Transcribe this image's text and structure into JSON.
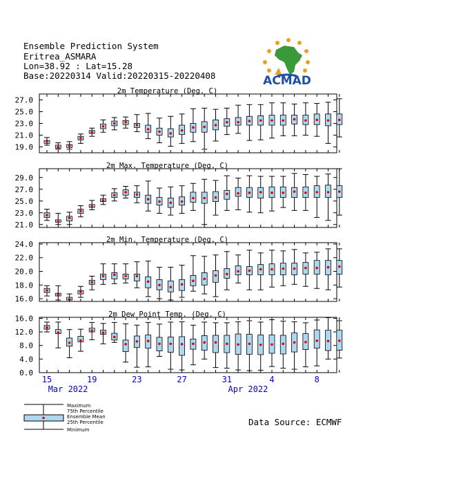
{
  "header": {
    "system": "Ensemble Prediction System",
    "station": "Eritrea_ASMARA",
    "coords": "Lon=38.92 : Lat=15.28",
    "base": "Base:20220314 Valid:20220315-20220408"
  },
  "logo": {
    "text": "ACMAD",
    "color": "#1f4fa3"
  },
  "data_source": "Data Source: ECMWF",
  "legend": {
    "maximum": "Maximum",
    "p75": "75th Percentile",
    "mean": "Ensemble Mean",
    "p25": "25th Percentile",
    "minimum": "Minimum"
  },
  "colors": {
    "box": "#add8f0",
    "mean": "#e00000",
    "axis_text": "#0000c8"
  },
  "x_axis": {
    "tick_labels": [
      "15",
      "19",
      "23",
      "27",
      "31",
      "4",
      "8"
    ],
    "months": [
      {
        "label": "Mar 2022",
        "day_index": 2
      },
      {
        "label": "Apr 2022",
        "day_index": 18
      }
    ]
  },
  "chart_data": [
    {
      "type": "box",
      "title": "2m Temperature (Deg. C)",
      "ylim": [
        18.0,
        28.0
      ],
      "yticks": [
        "27.0",
        "25.0",
        "23.0",
        "21.0",
        "19.0"
      ],
      "ytick_values": [
        27,
        25,
        23,
        21,
        19
      ],
      "boxes": [
        [
          19.3,
          19.6,
          19.9,
          20.1,
          20.6
        ],
        [
          18.6,
          18.8,
          19.0,
          19.3,
          19.7
        ],
        [
          18.6,
          18.9,
          19.2,
          19.4,
          19.9
        ],
        [
          19.6,
          20.2,
          20.5,
          20.8,
          21.2
        ],
        [
          20.8,
          21.3,
          21.5,
          21.8,
          22.2
        ],
        [
          21.5,
          22.1,
          22.5,
          22.9,
          23.6
        ],
        [
          21.9,
          22.6,
          23.0,
          23.4,
          24.0
        ],
        [
          22.2,
          22.8,
          23.2,
          23.5,
          24.1
        ],
        [
          21.6,
          22.3,
          22.7,
          23.0,
          24.5
        ],
        [
          20.4,
          21.5,
          22.0,
          22.7,
          24.7
        ],
        [
          19.7,
          21.0,
          21.6,
          22.2,
          23.9
        ],
        [
          19.1,
          20.7,
          21.3,
          22.1,
          24.2
        ],
        [
          19.6,
          21.1,
          21.8,
          22.7,
          24.6
        ],
        [
          19.9,
          21.5,
          22.3,
          23.0,
          25.5
        ],
        [
          18.6,
          21.5,
          22.4,
          23.3,
          25.6
        ],
        [
          20.0,
          21.9,
          22.7,
          23.6,
          25.4
        ],
        [
          21.1,
          22.5,
          23.2,
          23.8,
          25.6
        ],
        [
          21.3,
          22.7,
          23.2,
          24.0,
          26.1
        ],
        [
          20.1,
          22.7,
          23.4,
          24.2,
          26.2
        ],
        [
          20.2,
          22.7,
          23.5,
          24.3,
          26.2
        ],
        [
          20.5,
          22.7,
          23.5,
          24.4,
          26.5
        ],
        [
          20.9,
          22.7,
          23.5,
          24.4,
          26.5
        ],
        [
          20.9,
          22.9,
          23.7,
          24.4,
          26.3
        ],
        [
          21.0,
          22.8,
          23.5,
          24.4,
          26.5
        ],
        [
          20.8,
          22.8,
          23.6,
          24.6,
          26.4
        ],
        [
          19.6,
          22.6,
          23.5,
          24.6,
          26.6
        ],
        [
          20.7,
          22.8,
          23.6,
          24.6,
          27.2
        ]
      ]
    },
    {
      "type": "box",
      "title": "2m Max. Temperature (Deg. C)",
      "ylim": [
        20.5,
        30.5
      ],
      "yticks": [
        "29.0",
        "27.0",
        "25.0",
        "23.0",
        "21.0"
      ],
      "ytick_values": [
        29,
        27,
        25,
        23,
        21
      ],
      "boxes": [
        [
          21.7,
          22.2,
          22.6,
          23.0,
          23.6
        ],
        [
          21.0,
          21.4,
          21.5,
          21.8,
          22.9
        ],
        [
          21.0,
          21.6,
          22.1,
          22.4,
          23.1
        ],
        [
          22.3,
          22.9,
          23.3,
          23.6,
          24.2
        ],
        [
          23.5,
          23.9,
          24.1,
          24.4,
          25.1
        ],
        [
          24.4,
          24.9,
          25.1,
          25.4,
          26.0
        ],
        [
          25.0,
          25.6,
          26.0,
          26.4,
          27.1
        ],
        [
          25.5,
          26.0,
          26.5,
          26.9,
          27.5
        ],
        [
          24.7,
          25.6,
          26.1,
          26.5,
          27.6
        ],
        [
          23.3,
          24.6,
          25.3,
          26.0,
          28.4
        ],
        [
          22.9,
          24.3,
          24.9,
          25.6,
          27.2
        ],
        [
          22.6,
          23.9,
          24.7,
          25.5,
          27.4
        ],
        [
          22.9,
          24.3,
          24.9,
          25.7,
          27.6
        ],
        [
          23.4,
          24.8,
          25.5,
          26.5,
          28.0
        ],
        [
          21.0,
          24.6,
          25.5,
          26.5,
          28.7
        ],
        [
          22.6,
          24.9,
          25.6,
          26.6,
          28.5
        ],
        [
          23.4,
          25.3,
          26.2,
          26.8,
          29.3
        ],
        [
          23.5,
          25.8,
          26.3,
          27.3,
          28.9
        ],
        [
          23.1,
          25.6,
          26.4,
          27.3,
          29.3
        ],
        [
          23.0,
          25.5,
          26.5,
          27.3,
          29.2
        ],
        [
          23.3,
          25.6,
          26.4,
          27.4,
          29.2
        ],
        [
          23.9,
          25.6,
          26.4,
          27.4,
          29.2
        ],
        [
          23.4,
          25.6,
          26.6,
          27.3,
          29.7
        ],
        [
          23.4,
          25.6,
          26.4,
          27.4,
          29.5
        ],
        [
          22.2,
          25.6,
          26.5,
          27.6,
          29.2
        ],
        [
          21.7,
          25.6,
          26.5,
          27.7,
          29.6
        ],
        [
          22.6,
          25.6,
          26.6,
          27.6,
          30.5
        ]
      ]
    },
    {
      "type": "box",
      "title": "2m Min. Temperature (Deg. C)",
      "ylim": [
        15.6,
        24.2
      ],
      "yticks": [
        "24.0",
        "22.0",
        "20.0",
        "18.0",
        "16.0"
      ],
      "ytick_values": [
        24,
        22,
        20,
        18,
        16
      ],
      "boxes": [
        [
          16.4,
          16.9,
          17.2,
          17.5,
          17.9
        ],
        [
          15.8,
          16.4,
          16.6,
          16.8,
          17.9
        ],
        [
          15.6,
          15.8,
          15.9,
          16.2,
          16.7
        ],
        [
          16.2,
          16.7,
          17.0,
          17.2,
          17.8
        ],
        [
          17.3,
          18.1,
          18.4,
          18.7,
          19.3
        ],
        [
          18.1,
          18.8,
          19.3,
          19.6,
          21.1
        ],
        [
          18.2,
          18.9,
          19.5,
          19.8,
          21.1
        ],
        [
          18.3,
          18.9,
          19.3,
          19.6,
          21.1
        ],
        [
          17.6,
          18.6,
          19.3,
          19.6,
          21.4
        ],
        [
          16.3,
          17.6,
          18.5,
          19.2,
          21.5
        ],
        [
          16.0,
          17.3,
          18.0,
          18.8,
          20.6
        ],
        [
          15.8,
          17.0,
          17.7,
          18.6,
          20.6
        ],
        [
          16.2,
          17.2,
          18.1,
          18.8,
          20.9
        ],
        [
          17.1,
          17.9,
          18.6,
          19.4,
          22.3
        ],
        [
          16.7,
          18.0,
          18.9,
          19.8,
          22.2
        ],
        [
          16.3,
          18.4,
          19.4,
          20.1,
          22.4
        ],
        [
          17.3,
          19.0,
          19.6,
          20.4,
          22.9
        ],
        [
          18.3,
          19.5,
          20.0,
          20.8,
          22.4
        ],
        [
          17.3,
          19.5,
          20.1,
          20.7,
          23.1
        ],
        [
          17.3,
          19.5,
          20.3,
          21.0,
          22.7
        ],
        [
          17.7,
          19.5,
          20.3,
          21.1,
          23.1
        ],
        [
          17.9,
          19.5,
          20.4,
          21.2,
          23.0
        ],
        [
          18.1,
          19.5,
          20.4,
          21.2,
          23.2
        ],
        [
          17.8,
          19.6,
          20.5,
          21.3,
          22.7
        ],
        [
          17.5,
          19.6,
          20.5,
          21.6,
          22.8
        ],
        [
          17.3,
          19.5,
          20.6,
          21.6,
          23.3
        ],
        [
          17.7,
          19.6,
          20.7,
          21.6,
          23.3
        ]
      ]
    },
    {
      "type": "box",
      "title": "2m Dew Point Temp. (Deg. C)",
      "ylim": [
        0.0,
        16.3
      ],
      "yticks": [
        "16.0",
        "12.0",
        "8.0",
        "4.0",
        "0.0"
      ],
      "ytick_values": [
        16,
        12,
        8,
        4,
        0
      ],
      "boxes": [
        [
          12.0,
          12.8,
          13.3,
          13.9,
          14.9
        ],
        [
          7.3,
          11.5,
          11.8,
          12.7,
          14.9
        ],
        [
          4.4,
          7.8,
          8.8,
          10.2,
          12.7
        ],
        [
          6.3,
          9.1,
          9.5,
          10.7,
          12.8
        ],
        [
          9.7,
          12.0,
          12.4,
          13.1,
          14.8
        ],
        [
          8.5,
          11.3,
          11.8,
          12.5,
          14.5
        ],
        [
          8.9,
          9.6,
          10.5,
          11.6,
          14.8
        ],
        [
          3.1,
          6.2,
          8.4,
          9.6,
          14.4
        ],
        [
          1.6,
          7.4,
          9.2,
          10.8,
          14.0
        ],
        [
          1.7,
          7.2,
          9.3,
          11.1,
          14.8
        ],
        [
          4.8,
          6.4,
          8.5,
          10.4,
          14.3
        ],
        [
          1.0,
          6.0,
          8.5,
          10.5,
          14.9
        ],
        [
          0.8,
          5.1,
          8.4,
          10.6,
          15.0
        ],
        [
          2.3,
          6.9,
          8.5,
          9.9,
          14.0
        ],
        [
          4.0,
          6.6,
          8.9,
          10.9,
          14.9
        ],
        [
          1.5,
          5.9,
          8.9,
          11.0,
          14.7
        ],
        [
          1.3,
          5.9,
          8.5,
          11.0,
          14.7
        ],
        [
          0.8,
          5.4,
          8.3,
          11.4,
          15.0
        ],
        [
          0.6,
          5.4,
          8.5,
          11.3,
          15.3
        ],
        [
          0.7,
          5.3,
          8.2,
          11.1,
          14.9
        ],
        [
          1.8,
          5.7,
          8.3,
          11.1,
          15.6
        ],
        [
          1.3,
          5.5,
          8.5,
          11.0,
          15.2
        ],
        [
          1.0,
          6.1,
          8.9,
          11.7,
          15.0
        ],
        [
          1.7,
          6.8,
          9.0,
          11.5,
          14.7
        ],
        [
          2.0,
          7.2,
          9.4,
          12.6,
          15.5
        ],
        [
          4.0,
          6.5,
          9.3,
          12.5,
          16.2
        ],
        [
          4.3,
          6.6,
          9.4,
          12.5,
          15.3
        ]
      ]
    }
  ]
}
